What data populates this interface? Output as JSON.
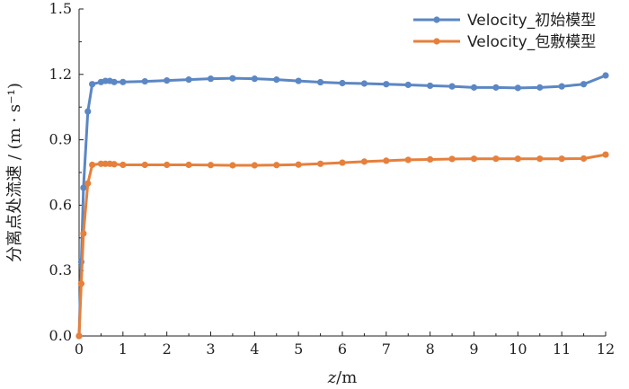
{
  "chart_data": {
    "type": "line",
    "title": "",
    "xlabel_italic": "z",
    "xlabel_unit": "/m",
    "ylabel": "分离点处流速 / (m · s⁻¹)",
    "xlim": [
      0,
      12
    ],
    "ylim": [
      0,
      1.5
    ],
    "xticks": [
      "0",
      "1",
      "2",
      "3",
      "4",
      "5",
      "6",
      "7",
      "8",
      "9",
      "10",
      "11",
      "12"
    ],
    "yticks": [
      "0.0",
      "0.3",
      "0.6",
      "0.9",
      "1.2",
      "1.5"
    ],
    "grid": false,
    "legend_position": "top-right",
    "series": [
      {
        "name": "Velocity_初始模型",
        "color": "#5b87c4",
        "x": [
          0,
          0.05,
          0.1,
          0.2,
          0.3,
          0.5,
          0.6,
          0.7,
          0.8,
          1.0,
          1.5,
          2.0,
          2.5,
          3.0,
          3.5,
          4.0,
          4.5,
          5.0,
          5.5,
          6.0,
          6.5,
          7.0,
          7.5,
          8.0,
          8.5,
          9.0,
          9.5,
          10.0,
          10.5,
          11.0,
          11.5,
          12.0
        ],
        "y": [
          0.0,
          0.34,
          0.68,
          1.03,
          1.155,
          1.165,
          1.17,
          1.17,
          1.165,
          1.165,
          1.168,
          1.172,
          1.176,
          1.18,
          1.182,
          1.18,
          1.176,
          1.17,
          1.164,
          1.16,
          1.158,
          1.155,
          1.152,
          1.148,
          1.145,
          1.14,
          1.14,
          1.138,
          1.14,
          1.145,
          1.155,
          1.195
        ]
      },
      {
        "name": "Velocity_包敷模型",
        "color": "#e6803c",
        "x": [
          0,
          0.05,
          0.1,
          0.2,
          0.3,
          0.5,
          0.6,
          0.7,
          0.8,
          1.0,
          1.5,
          2.0,
          2.5,
          3.0,
          3.5,
          4.0,
          4.5,
          5.0,
          5.5,
          6.0,
          6.5,
          7.0,
          7.5,
          8.0,
          8.5,
          9.0,
          9.5,
          10.0,
          10.5,
          11.0,
          11.5,
          12.0
        ],
        "y": [
          0.0,
          0.24,
          0.47,
          0.7,
          0.785,
          0.79,
          0.79,
          0.79,
          0.788,
          0.785,
          0.785,
          0.785,
          0.785,
          0.784,
          0.783,
          0.783,
          0.784,
          0.786,
          0.79,
          0.795,
          0.8,
          0.804,
          0.808,
          0.81,
          0.812,
          0.813,
          0.813,
          0.813,
          0.813,
          0.813,
          0.814,
          0.832
        ]
      }
    ]
  }
}
